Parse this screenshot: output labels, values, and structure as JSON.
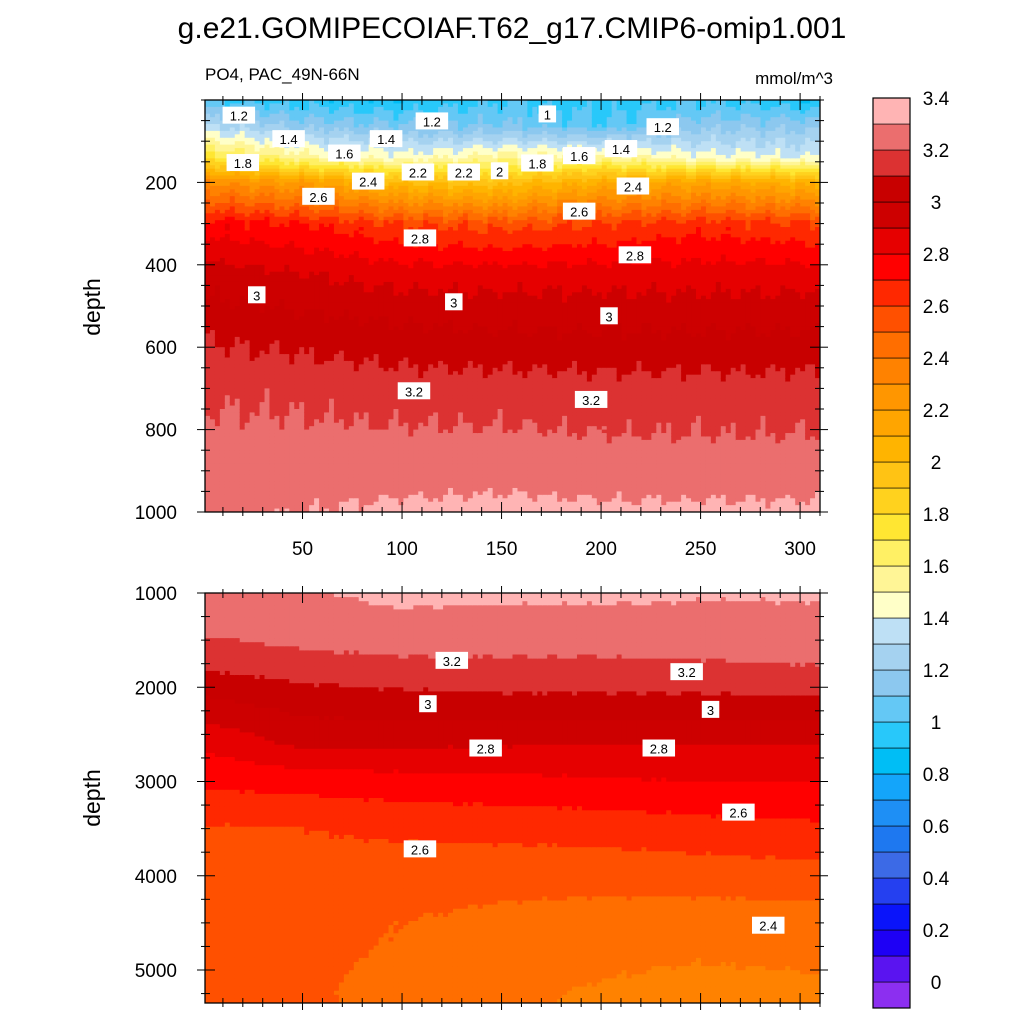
{
  "title": "g.e21.GOMIPECOIAF.T62_g17.CMIP6-omip1.001",
  "colormap": [
    "#8c2ff0",
    "#5a14f0",
    "#1e00f5",
    "#0a14fa",
    "#2540f0",
    "#3c6ae6",
    "#1e78f0",
    "#1e8ff5",
    "#14a5fa",
    "#00bef5",
    "#28c8fa",
    "#64c8f5",
    "#8cc8ef",
    "#a5d2f0",
    "#bee0f5",
    "#ffffc8",
    "#fff596",
    "#fff064",
    "#ffe632",
    "#ffd21e",
    "#ffc314",
    "#ffb400",
    "#ffa500",
    "#ff9600",
    "#ff8200",
    "#ff6e00",
    "#ff5000",
    "#ff2800",
    "#ff0000",
    "#e60000",
    "#cd0000",
    "#c80000",
    "#dc3232",
    "#eb6e6e",
    "#ffb4b4"
  ],
  "chart_data": [
    {
      "type": "contour",
      "panel": "upper",
      "subtitle_left": "PO4, PAC_49N-66N",
      "subtitle_right": "mmol/m^3",
      "ylabel": "depth",
      "xlabel": "",
      "xlim": [
        1,
        310
      ],
      "ylim": [
        1000,
        0
      ],
      "y_inverted": true,
      "xticks": [
        "50",
        "100",
        "150",
        "200",
        "250",
        "300"
      ],
      "yticks": [
        "200",
        "400",
        "600",
        "800",
        "1000"
      ],
      "contour_labels": [
        {
          "text": "1.2",
          "x": 18,
          "y": 38
        },
        {
          "text": "1.4",
          "x": 43,
          "y": 95
        },
        {
          "text": "1.8",
          "x": 20,
          "y": 153
        },
        {
          "text": "1.6",
          "x": 71,
          "y": 130
        },
        {
          "text": "1.4",
          "x": 92,
          "y": 95
        },
        {
          "text": "1.2",
          "x": 115,
          "y": 52
        },
        {
          "text": "1",
          "x": 173,
          "y": 35
        },
        {
          "text": "1.2",
          "x": 231,
          "y": 66
        },
        {
          "text": "1.4",
          "x": 210,
          "y": 119
        },
        {
          "text": "1.6",
          "x": 189,
          "y": 136
        },
        {
          "text": "1.8",
          "x": 168,
          "y": 154
        },
        {
          "text": "2",
          "x": 149,
          "y": 173
        },
        {
          "text": "2.2",
          "x": 131,
          "y": 176
        },
        {
          "text": "2.2",
          "x": 108,
          "y": 176
        },
        {
          "text": "2.4",
          "x": 83,
          "y": 198
        },
        {
          "text": "2.6",
          "x": 58,
          "y": 235
        },
        {
          "text": "2.4",
          "x": 216,
          "y": 210
        },
        {
          "text": "2.6",
          "x": 189,
          "y": 271
        },
        {
          "text": "2.8",
          "x": 109,
          "y": 336
        },
        {
          "text": "2.8",
          "x": 217,
          "y": 377
        },
        {
          "text": "3",
          "x": 27,
          "y": 474
        },
        {
          "text": "3",
          "x": 126,
          "y": 491
        },
        {
          "text": "3",
          "x": 204,
          "y": 525
        },
        {
          "text": "3.2",
          "x": 106,
          "y": 707
        },
        {
          "text": "3.2",
          "x": 195,
          "y": 728
        }
      ],
      "fields": {
        "top_layers": [
          {
            "depth": 0,
            "values": [
              1.0,
              0.95,
              0.9,
              1.0,
              0.95,
              1.0,
              0.9
            ]
          },
          {
            "depth": 60,
            "values": [
              1.3,
              1.15,
              1.1,
              1.1,
              1.0,
              1.15,
              1.15
            ]
          },
          {
            "depth": 140,
            "values": [
              1.75,
              1.55,
              1.45,
              1.55,
              1.55,
              1.45,
              1.4
            ]
          },
          {
            "depth": 200,
            "values": [
              2.3,
              2.2,
              2.0,
              1.95,
              2.1,
              2.15,
              2.05
            ]
          },
          {
            "depth": 300,
            "values": [
              2.75,
              2.7,
              2.6,
              2.55,
              2.6,
              2.65,
              2.6
            ]
          },
          {
            "depth": 420,
            "values": [
              2.95,
              2.9,
              2.85,
              2.85,
              2.85,
              2.85,
              2.85
            ]
          },
          {
            "depth": 560,
            "values": [
              3.08,
              3.05,
              3.02,
              3.0,
              3.0,
              3.0,
              3.0
            ]
          },
          {
            "depth": 700,
            "values": [
              3.18,
              3.17,
              3.15,
              3.15,
              3.14,
              3.14,
              3.14
            ]
          },
          {
            "depth": 850,
            "values": [
              3.24,
              3.24,
              3.23,
              3.23,
              3.22,
              3.22,
              3.22
            ]
          },
          {
            "depth": 1000,
            "values": [
              3.28,
              3.3,
              3.32,
              3.33,
              3.32,
              3.32,
              3.32
            ]
          }
        ],
        "x_nodes": [
          1,
          50,
          100,
          150,
          200,
          250,
          310
        ]
      }
    },
    {
      "type": "contour",
      "panel": "lower",
      "ylabel": "depth",
      "xlabel": "",
      "xlim": [
        1,
        310
      ],
      "ylim": [
        5350,
        1000
      ],
      "y_inverted": true,
      "yticks": [
        "1000",
        "2000",
        "3000",
        "4000",
        "5000"
      ],
      "contour_labels": [
        {
          "text": "3.2",
          "x": 125,
          "y": 1720
        },
        {
          "text": "3.2",
          "x": 243,
          "y": 1840
        },
        {
          "text": "3",
          "x": 113,
          "y": 2180
        },
        {
          "text": "3",
          "x": 255,
          "y": 2240
        },
        {
          "text": "2.8",
          "x": 142,
          "y": 2650
        },
        {
          "text": "2.8",
          "x": 229,
          "y": 2650
        },
        {
          "text": "2.6",
          "x": 269,
          "y": 3330
        },
        {
          "text": "2.6",
          "x": 109,
          "y": 3720
        },
        {
          "text": "2.4",
          "x": 284,
          "y": 4530
        }
      ],
      "fields": {
        "top_layers": [
          {
            "depth": 1000,
            "values": [
              3.26,
              3.29,
              3.33,
              3.32,
              3.32,
              3.31,
              3.31
            ]
          },
          {
            "depth": 1600,
            "values": [
              3.18,
              3.2,
              3.22,
              3.22,
              3.22,
              3.23,
              3.25
            ]
          },
          {
            "depth": 2100,
            "values": [
              3.0,
              3.06,
              3.08,
              3.09,
              3.09,
              3.09,
              3.1
            ]
          },
          {
            "depth": 2600,
            "values": [
              2.82,
              2.92,
              2.92,
              2.91,
              2.9,
              2.9,
              2.9
            ]
          },
          {
            "depth": 3000,
            "values": [
              2.72,
              2.74,
              2.76,
              2.77,
              2.79,
              2.8,
              2.8
            ]
          },
          {
            "depth": 3500,
            "values": [
              2.59,
              2.6,
              2.62,
              2.63,
              2.64,
              2.66,
              2.68
            ]
          },
          {
            "depth": 4000,
            "values": [
              2.55,
              2.56,
              2.55,
              2.54,
              2.54,
              2.55,
              2.56
            ]
          },
          {
            "depth": 4500,
            "values": [
              2.55,
              2.54,
              2.5,
              2.47,
              2.45,
              2.44,
              2.45
            ]
          },
          {
            "depth": 5350,
            "values": [
              2.54,
              2.52,
              2.46,
              2.42,
              2.38,
              2.36,
              2.37
            ]
          }
        ],
        "x_nodes": [
          1,
          50,
          100,
          150,
          200,
          250,
          310
        ]
      }
    },
    {
      "type": "colorbar",
      "levels_start": -0.1,
      "levels_step": 0.1,
      "labels": [
        "0",
        "0.2",
        "0.4",
        "0.6",
        "0.8",
        "1",
        "1.2",
        "1.4",
        "1.6",
        "1.8",
        "2",
        "2.2",
        "2.4",
        "2.6",
        "2.8",
        "3",
        "3.2",
        "3.4"
      ]
    }
  ]
}
